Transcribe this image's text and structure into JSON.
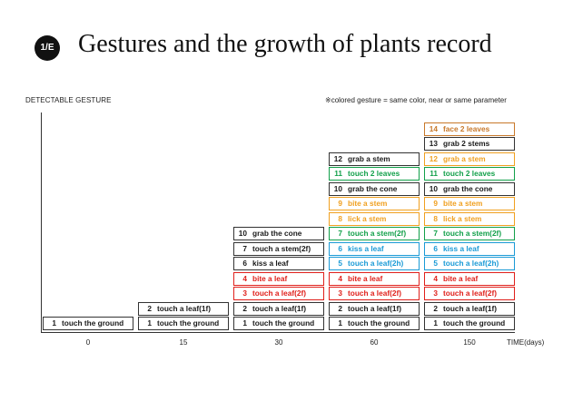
{
  "header": {
    "badge": "1/E",
    "title": "Gestures and the growth of plants record"
  },
  "y_axis_label": "DETECTABLE GESTURE",
  "note": "※colored gesture = same color, near or same parameter",
  "x_axis_label": "TIME(days)",
  "colors": {
    "black": "#1a1a1a",
    "red": "#e0201b",
    "blue": "#1a9ad6",
    "green": "#12a04a",
    "orange": "#f0a020",
    "brown": "#c8782a"
  },
  "columns": [
    {
      "tick": "0",
      "gestures": [
        {
          "n": "1",
          "label": "touch the ground",
          "color": "#1a1a1a",
          "border": "#333333"
        }
      ]
    },
    {
      "tick": "15",
      "gestures": [
        {
          "n": "1",
          "label": "touch the ground",
          "color": "#1a1a1a",
          "border": "#333333"
        },
        {
          "n": "2",
          "label": "touch a leaf(1f)",
          "color": "#1a1a1a",
          "border": "#333333"
        }
      ]
    },
    {
      "tick": "30",
      "gestures": [
        {
          "n": "1",
          "label": "touch the ground",
          "color": "#1a1a1a",
          "border": "#333333"
        },
        {
          "n": "2",
          "label": "touch a leaf(1f)",
          "color": "#1a1a1a",
          "border": "#333333"
        },
        {
          "n": "3",
          "label": "touch a leaf(2f)",
          "color": "#e0201b",
          "border": "#e0201b"
        },
        {
          "n": "4",
          "label": "bite a leaf",
          "color": "#e0201b",
          "border": "#e0201b"
        },
        {
          "n": "6",
          "label": "kiss a leaf",
          "color": "#1a1a1a",
          "border": "#333333"
        },
        {
          "n": "7",
          "label": "touch a stem(2f)",
          "color": "#1a1a1a",
          "border": "#333333"
        },
        {
          "n": "10",
          "label": "grab the cone",
          "color": "#1a1a1a",
          "border": "#333333"
        }
      ]
    },
    {
      "tick": "60",
      "gestures": [
        {
          "n": "1",
          "label": "touch the ground",
          "color": "#1a1a1a",
          "border": "#333333"
        },
        {
          "n": "2",
          "label": "touch a leaf(1f)",
          "color": "#1a1a1a",
          "border": "#333333"
        },
        {
          "n": "3",
          "label": "touch a leaf(2f)",
          "color": "#e0201b",
          "border": "#e0201b"
        },
        {
          "n": "4",
          "label": "bite a leaf",
          "color": "#e0201b",
          "border": "#e0201b"
        },
        {
          "n": "5",
          "label": "touch a leaf(2h)",
          "color": "#1a9ad6",
          "border": "#1a9ad6"
        },
        {
          "n": "6",
          "label": "kiss a leaf",
          "color": "#1a9ad6",
          "border": "#1a9ad6"
        },
        {
          "n": "7",
          "label": "touch a stem(2f)",
          "color": "#12a04a",
          "border": "#12a04a"
        },
        {
          "n": "8",
          "label": "lick a stem",
          "color": "#f0a020",
          "border": "#f0a020"
        },
        {
          "n": "9",
          "label": "bite a stem",
          "color": "#f0a020",
          "border": "#f0a020"
        },
        {
          "n": "10",
          "label": "grab the cone",
          "color": "#1a1a1a",
          "border": "#333333"
        },
        {
          "n": "11",
          "label": "touch 2 leaves",
          "color": "#12a04a",
          "border": "#12a04a"
        },
        {
          "n": "12",
          "label": "grab a stem",
          "color": "#1a1a1a",
          "border": "#333333"
        }
      ]
    },
    {
      "tick": "150",
      "gestures": [
        {
          "n": "1",
          "label": "touch the ground",
          "color": "#1a1a1a",
          "border": "#333333"
        },
        {
          "n": "2",
          "label": "touch a leaf(1f)",
          "color": "#1a1a1a",
          "border": "#333333"
        },
        {
          "n": "3",
          "label": "touch a leaf(2f)",
          "color": "#e0201b",
          "border": "#e0201b"
        },
        {
          "n": "4",
          "label": "bite a leaf",
          "color": "#e0201b",
          "border": "#e0201b"
        },
        {
          "n": "5",
          "label": "touch a leaf(2h)",
          "color": "#1a9ad6",
          "border": "#1a9ad6"
        },
        {
          "n": "6",
          "label": "kiss a leaf",
          "color": "#1a9ad6",
          "border": "#1a9ad6"
        },
        {
          "n": "7",
          "label": "touch a stem(2f)",
          "color": "#12a04a",
          "border": "#12a04a"
        },
        {
          "n": "8",
          "label": "lick a stem",
          "color": "#f0a020",
          "border": "#f0a020"
        },
        {
          "n": "9",
          "label": "bite a stem",
          "color": "#f0a020",
          "border": "#f0a020"
        },
        {
          "n": "10",
          "label": "grab the cone",
          "color": "#1a1a1a",
          "border": "#333333"
        },
        {
          "n": "11",
          "label": "touch 2 leaves",
          "color": "#12a04a",
          "border": "#12a04a"
        },
        {
          "n": "12",
          "label": "grab a stem",
          "color": "#f0a020",
          "border": "#f0a020"
        },
        {
          "n": "13",
          "label": "grab 2 stems",
          "color": "#1a1a1a",
          "border": "#333333"
        },
        {
          "n": "14",
          "label": "face 2 leaves",
          "color": "#c8782a",
          "border": "#c8782a"
        }
      ]
    }
  ]
}
